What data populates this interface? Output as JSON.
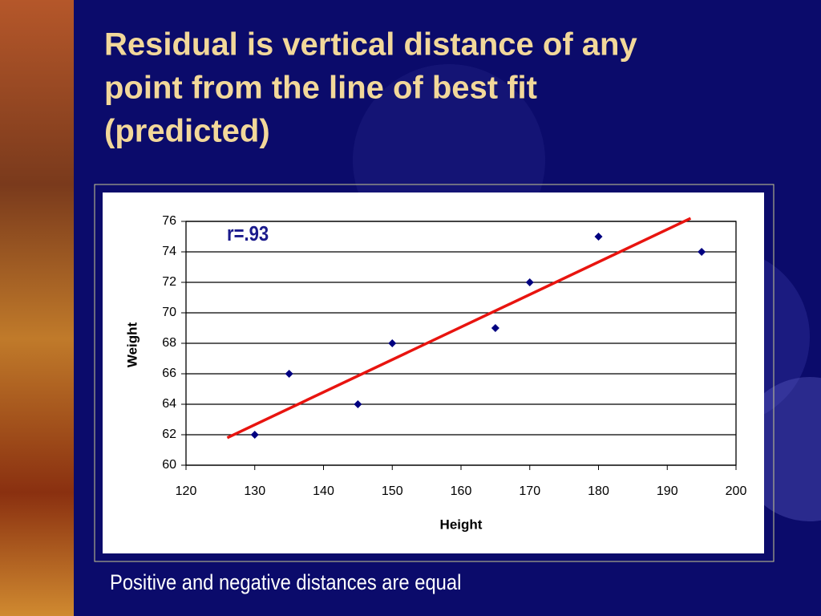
{
  "title": [
    "Residual is vertical distance of any",
    "point from the line of best fit",
    "(predicted)"
  ],
  "caption": "Positive and negative distances are equal",
  "chart_data": {
    "type": "scatter",
    "x_label": "Height",
    "y_label": "Weight",
    "annotation": "r=.93",
    "series": [
      {
        "color": "#000080",
        "x": [
          130,
          135,
          145,
          150,
          165,
          170,
          180,
          195
        ],
        "values": [
          62,
          66,
          64,
          68,
          69,
          72,
          75,
          74
        ]
      }
    ],
    "trendline": {
      "color": "#e8140f",
      "x": [
        126,
        193.4
      ],
      "values": [
        61.8,
        76.2
      ]
    },
    "xlim": [
      120,
      200
    ],
    "xticks": [
      120,
      130,
      140,
      150,
      160,
      170,
      180,
      190,
      200
    ],
    "ylim": [
      60,
      76
    ],
    "yticks": [
      60,
      62,
      64,
      66,
      68,
      70,
      72,
      74,
      76
    ],
    "grid": true
  }
}
